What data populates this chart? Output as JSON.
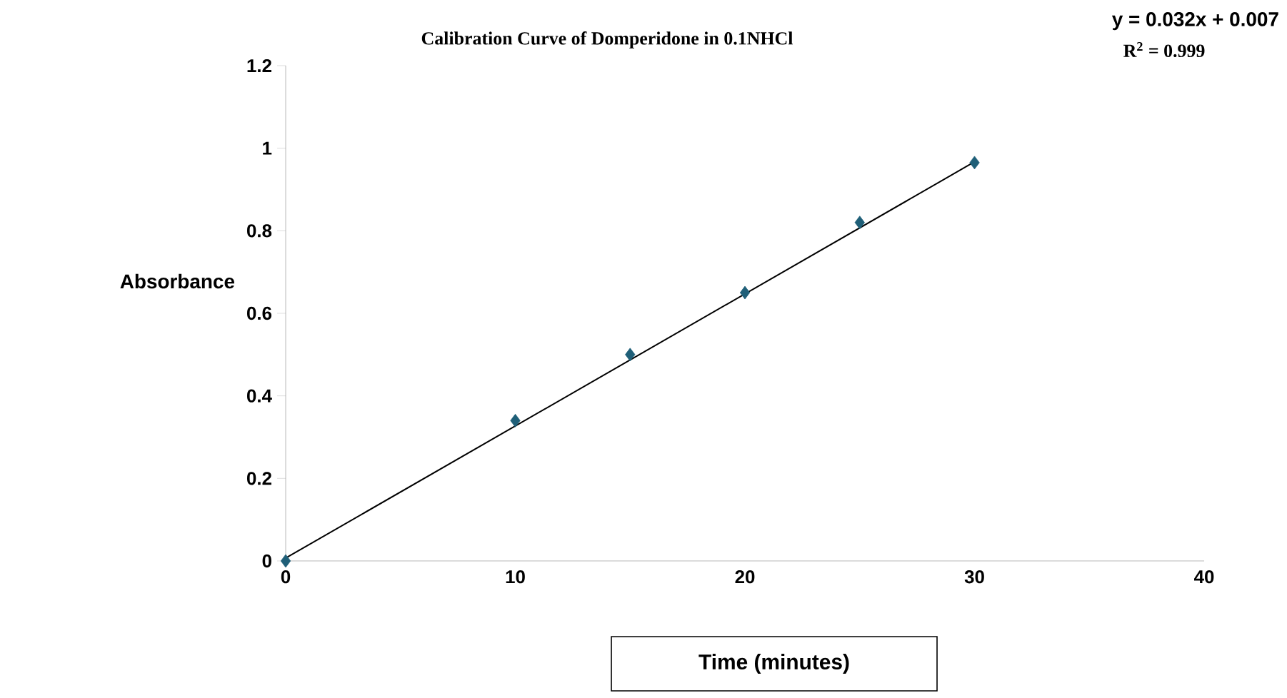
{
  "chart_data": {
    "type": "scatter",
    "title": "Calibration Curve of Domperidone in 0.1NHCl",
    "xlabel": "Time (minutes)",
    "ylabel": "Absorbance",
    "annotations": [
      "y = 0.032x + 0.007",
      "R$^{2}$ = 0.999"
    ],
    "series": [
      {
        "x": [
          0,
          10,
          15,
          20,
          25,
          30
        ],
        "values": [
          0,
          0.34,
          0.5,
          0.65,
          0.82,
          0.965
        ],
        "color": "#1f5f78",
        "marker": "diamond"
      },
      {
        "type": "line",
        "x": [
          0,
          30
        ],
        "values": [
          0.007,
          0.967
        ],
        "color": "#000000",
        "marker": "none",
        "line_style": "solid"
      }
    ],
    "xlim": [
      0,
      40
    ],
    "xticks": [
      0,
      10,
      20,
      30,
      40
    ],
    "ylim": [
      0,
      1.2
    ],
    "yticks": [
      0,
      0.2,
      0.4,
      0.6,
      0.8,
      1,
      1.2
    ]
  }
}
